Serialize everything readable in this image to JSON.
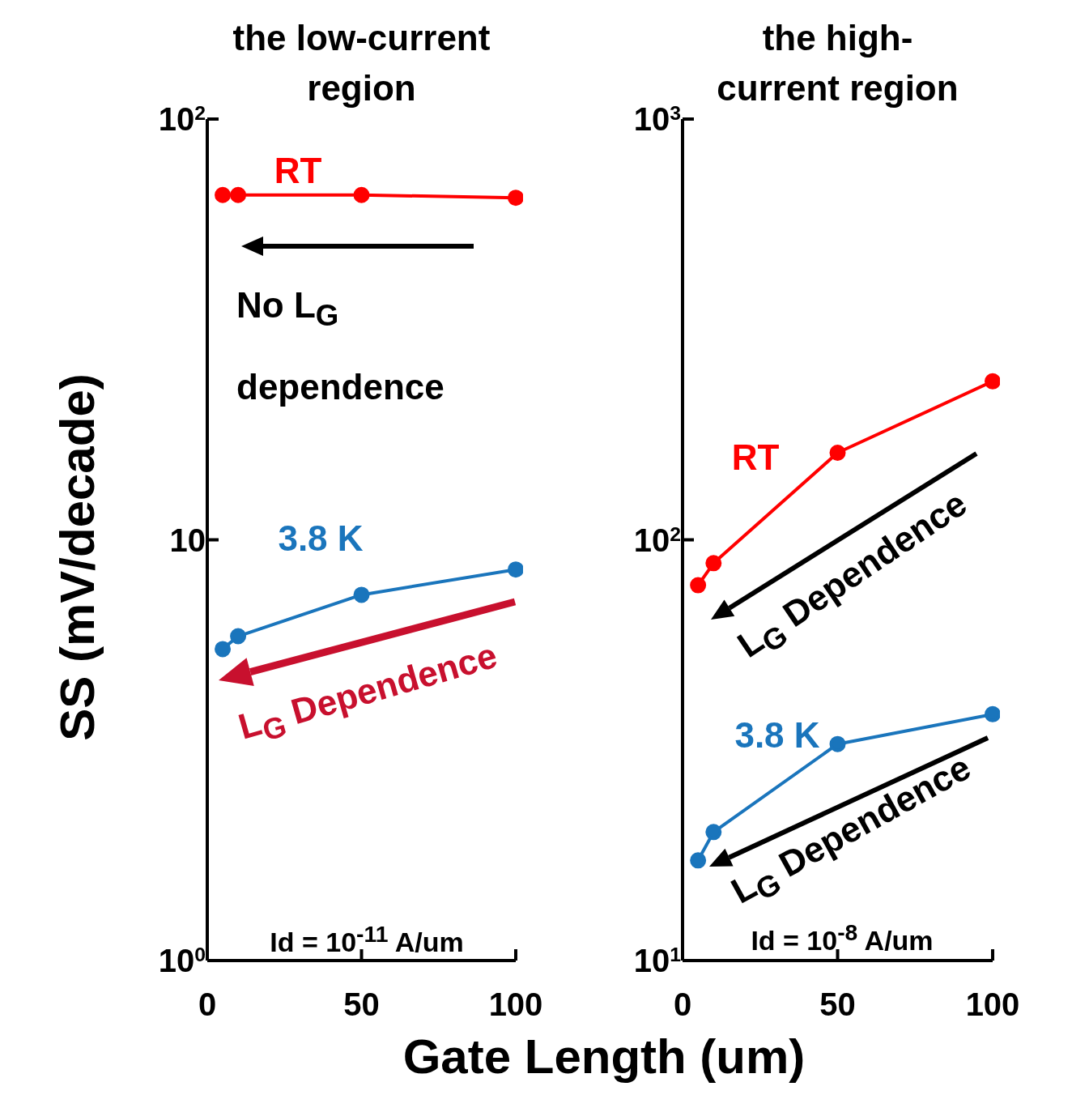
{
  "chart_data": [
    {
      "type": "line",
      "title": "the low-current region",
      "xlabel": "Gate Length (um)",
      "ylabel": "SS (mV/decade)",
      "x": [
        5,
        10,
        50,
        100
      ],
      "series": [
        {
          "name": "RT",
          "color": "#ff0000",
          "values": [
            66,
            66,
            66,
            65
          ]
        },
        {
          "name": "3.8 K",
          "color": "#1a75bc",
          "values": [
            5.5,
            5.9,
            7.4,
            8.5
          ]
        }
      ],
      "xlim": [
        0,
        100
      ],
      "xticks": [
        0,
        50,
        100
      ],
      "ylim": [
        1,
        100
      ],
      "yticks": [
        {
          "value": 1,
          "label": "10$^{0}$"
        },
        10,
        {
          "value": 100,
          "label": "10$^{2}$"
        }
      ],
      "log": true,
      "grid": false,
      "legend": false,
      "marker": "circle",
      "line_style": "solid",
      "annotations": [
        "No L$_{G}$ dependence",
        "L$_{G}$ Dependence",
        "Id = 10$^{-11}$ A/um"
      ]
    },
    {
      "type": "line",
      "title": "the high-current region",
      "x": [
        5,
        10,
        50,
        100
      ],
      "series": [
        {
          "name": "RT",
          "color": "#ff0000",
          "values": [
            78,
            88,
            161,
            238
          ]
        },
        {
          "name": "3.8 K",
          "color": "#1a75bc",
          "values": [
            17.3,
            20.2,
            32.7,
            38.5
          ]
        }
      ],
      "xlim": [
        0,
        100
      ],
      "xticks": [
        0,
        50,
        100
      ],
      "ylim": [
        10,
        1000
      ],
      "yticks": [
        {
          "value": 10,
          "label": "10$^{1}$"
        },
        {
          "value": 100,
          "label": "10$^{2}$"
        },
        {
          "value": 1000,
          "label": "10$^{3}$"
        }
      ],
      "log": true,
      "grid": false,
      "legend": false,
      "marker": "circle",
      "line_style": "solid",
      "annotations": [
        "L$_{G}$ Dependence",
        "L$_{G}$ Dependence",
        "Id = 10$^{-8}$ A/um"
      ]
    }
  ]
}
